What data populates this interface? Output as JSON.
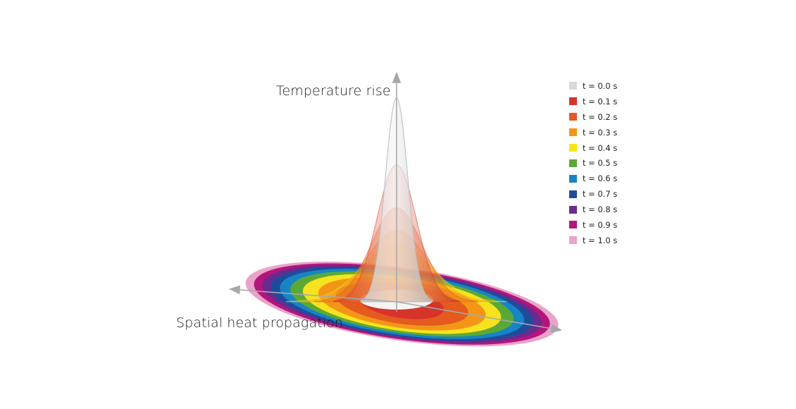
{
  "title": "",
  "axes": {
    "vertical_label": "Temperature rise",
    "horizontal_label": "Spatial heat propagation"
  },
  "chart_data": {
    "type": "area",
    "title": "",
    "xlabel": "Spatial heat propagation",
    "ylabel": "Temperature rise",
    "legend_position": "right",
    "grid": false,
    "series": [
      {
        "name": "t = 0.0 s",
        "color": "#d5d9dc",
        "peak": 1.0,
        "spread": 1.0
      },
      {
        "name": "t = 0.1 s",
        "color": "#d6332a",
        "peak": 0.67,
        "spread": 2.0
      },
      {
        "name": "t = 0.2 s",
        "color": "#e45a1f",
        "peak": 0.46,
        "spread": 2.6
      },
      {
        "name": "t = 0.3 s",
        "color": "#f39617",
        "peak": 0.35,
        "spread": 3.1
      },
      {
        "name": "t = 0.4 s",
        "color": "#f7e31d",
        "peak": 0.28,
        "spread": 3.5
      },
      {
        "name": "t = 0.5 s",
        "color": "#5aa937",
        "peak": 0.22,
        "spread": 3.85
      },
      {
        "name": "t = 0.6 s",
        "color": "#1784c5",
        "peak": 0.18,
        "spread": 4.15
      },
      {
        "name": "t = 0.7 s",
        "color": "#1e4c9c",
        "peak": 0.15,
        "spread": 4.4
      },
      {
        "name": "t = 0.8 s",
        "color": "#6a2a8f",
        "peak": 0.13,
        "spread": 4.6
      },
      {
        "name": "t = 0.9 s",
        "color": "#b4157c",
        "peak": 0.11,
        "spread": 4.8
      },
      {
        "name": "t = 1.0 s",
        "color": "#e9a3c9",
        "peak": 0.1,
        "spread": 5.0
      }
    ]
  }
}
